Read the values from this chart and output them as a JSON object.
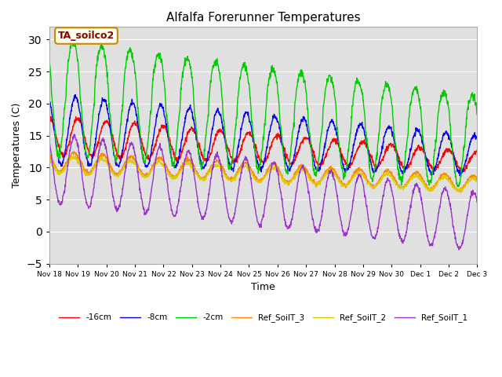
{
  "title": "Alfalfa Forerunner Temperatures",
  "xlabel": "Time",
  "ylabel": "Temperatures (C)",
  "ylim": [
    -5,
    32
  ],
  "yticks": [
    -5,
    0,
    5,
    10,
    15,
    20,
    25,
    30
  ],
  "annotation_text": "TA_soilco2",
  "background_color": "#ffffff",
  "plot_bg_color": "#e0e0e0",
  "series_colors": {
    "d16cm": "#ff0000",
    "d8cm": "#0000ee",
    "d2cm": "#00cc00",
    "ref3": "#ff8800",
    "ref2": "#ddcc00",
    "ref1": "#9933cc"
  },
  "series_labels": {
    "d16cm": "-16cm",
    "d8cm": "-8cm",
    "d2cm": "-2cm",
    "ref3": "Ref_SoilT_3",
    "ref2": "Ref_SoilT_2",
    "ref1": "Ref_SoilT_1"
  },
  "n_days": 15,
  "start_day": 18,
  "points_per_day": 96,
  "figsize": [
    6.4,
    4.8
  ],
  "dpi": 100
}
